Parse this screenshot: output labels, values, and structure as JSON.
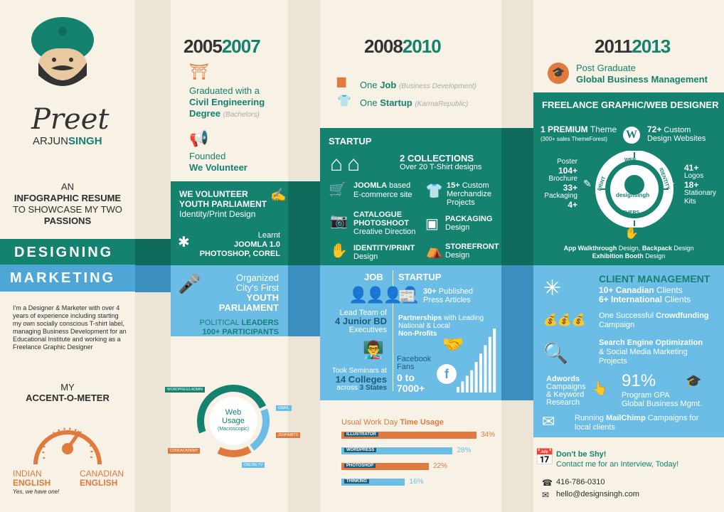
{
  "profile": {
    "first": "Preet",
    "last_a": "ARJUN",
    "last_b": "SINGH",
    "tag1": "AN",
    "tag2": "INFOGRAPHIC RESUME",
    "tag3": "TO SHOWCASE MY TWO",
    "tag4": "PASSIONS",
    "designing": "DESIGNING",
    "marketing": "MARKETING",
    "bio": "I'm a Designer & Marketer with over 4 years of experience including starting my own socially conscious T-shirt label, managing Business Development for an Educational Institute and working as a Freelance Graphic Designer",
    "accent_my": "MY",
    "accent_title": "ACCENT-O-METER",
    "indian_a": "INDIAN",
    "indian_b": "ENGLISH",
    "canadian_a": "CANADIAN",
    "canadian_b": "ENGLISH",
    "yes": "Yes, we have one!"
  },
  "col1": {
    "y1": "2005",
    "y2": "2007",
    "grad1": "Graduated with a",
    "grad2": "Civil Engineering",
    "grad3": "Degree",
    "grad4": "(Bachelors)",
    "f1": "Founded",
    "f2": "We Volunteer",
    "wv1": "WE VOLUNTEER",
    "wv2": "YOUTH PARLIAMENT",
    "wv3": "Identity/Print Design",
    "l1": "Learnt",
    "l2": "JOOMLA 1.0",
    "l3": "PHOTOSHOP, COREL",
    "o1": "Organized",
    "o2": "City's First",
    "o3": "YOUTH",
    "o4": "PARLIAMENT",
    "p1": "POLITICAL",
    "p2": "LEADERS",
    "p3": "100+ PARTICIPANTS"
  },
  "col2": {
    "y1": "2008",
    "y2": "2010",
    "j1": "One",
    "j2": "Job",
    "j3": "(Business Development)",
    "s1": "One",
    "s2": "Startup",
    "s3": "(KarmaRepublic)",
    "startup": "STARTUP",
    "c1": "2 COLLECTIONS",
    "c2": "Over 20 T-Shirt designs",
    "jo1": "JOOMLA",
    "jo2": "based",
    "jo3": "E-commerce site",
    "m1": "15+",
    "m2": "Custom",
    "m3": "Merchandize",
    "m4": "Projects",
    "ca1": "CATALOGUE",
    "ca2": "PHOTOSHOOT",
    "ca3": "Creative Direction",
    "pk1": "PACKAGING",
    "pk2": "Design",
    "ip1": "IDENTITY/PRINT",
    "ip2": "Design",
    "sf1": "STOREFRONT",
    "sf2": "Design",
    "job": "JOB",
    "startup2": "STARTUP",
    "lt1": "Lead Team of",
    "lt2": "4 Junior BD",
    "lt3": "Executives",
    "pa1": "30+",
    "pa2": "Published",
    "pa3": "Press Articles",
    "pl1": "Partnerships",
    "pl2": "with Leading",
    "pl3": "National & Local",
    "pl4": "Non-Profits",
    "ts1": "Took Seminars at",
    "ts2": "14 Colleges",
    "ts3": "across",
    "ts4": "3 States",
    "fb1": "Facebook",
    "fb2": "Fans",
    "fb3": "0 to",
    "fb4": "7000+"
  },
  "col3": {
    "y1": "2011",
    "y2": "2013",
    "pg1": "Post Graduate",
    "pg2": "Global Business Management",
    "fg": "FREELANCE GRAPHIC/WEB DESIGNER",
    "pr1": "1 PREMIUM",
    "pr2": "Theme",
    "pr3": "(300+ sales ThemeForest)",
    "cd1": "72+",
    "cd2": "Custom",
    "cd3": "Design Websites",
    "po1": "Poster",
    "po2": "104+",
    "po3": "Brochure",
    "po4": "33+",
    "po5": "Packaging",
    "po6": "4+",
    "lo1": "41+",
    "lo2": "Logos",
    "lo3": "18+",
    "lo4": "Stationary",
    "lo5": "Kits",
    "wheel_web": "WEB",
    "wheel_id": "IDENTITY",
    "wheel_oth": "OTHERS",
    "wheel_print": "PRINT",
    "wheel_center": "designsingh",
    "aw1": "App Walkthrough",
    "aw2": "Design,",
    "aw3": "Backpack",
    "aw4": "Design",
    "aw5": "Exhibition Booth",
    "aw6": "Design",
    "cm": "CLIENT MANAGEMENT",
    "cl1": "10+ Canadian",
    "cl2": "Clients",
    "cl3": "6+ International",
    "cl4": "Clients",
    "cf1": "One Successful",
    "cf2": "Crowdfunding",
    "cf3": "Campaign",
    "se1": "Search Engine Optimization",
    "se2": "& Social Media Marketing",
    "se3": "Projects",
    "ad1": "Adwords",
    "ad2": "Campaigns",
    "ad3": "& Keyword",
    "ad4": "Research",
    "gpa1": "91%",
    "gpa2": "Program GPA",
    "gpa3": "Global Business Mgmt.",
    "mc1": "Running",
    "mc2": "MailChimp",
    "mc3": "Campaigns for",
    "mc4": "local clients",
    "ds1": "Don't be Shy!",
    "ds2": "Contact me for an Interview, Today!",
    "phone": "416-786-0310",
    "email": "hello@designsingh.com"
  },
  "web_usage": {
    "title1": "Web",
    "title2": "Usage",
    "title3": "(Macroscopic)",
    "labels": [
      "WORDPRESS ADMIN",
      "GMAIL",
      "ZENHABITS",
      "CODEACADEMY",
      "ONLINE TV"
    ]
  },
  "chart_data": {
    "type": "bar",
    "title": "Usual Work Day Time Usage",
    "title_a": "Usual Work Day",
    "title_b": "Time Usage",
    "categories": [
      "ILLUSTRATOR",
      "WORDPRESS",
      "PHOTOSHOP",
      "THINKING"
    ],
    "values": [
      34,
      28,
      22,
      16
    ],
    "value_labels": [
      "34%",
      "28%",
      "22%",
      "16%"
    ],
    "colors": [
      "#e07a3e",
      "#6cbde6",
      "#e07a3e",
      "#6cbde6"
    ]
  },
  "fb_chart": {
    "values": [
      2,
      4,
      6,
      8,
      11,
      14,
      17,
      20,
      23
    ]
  }
}
